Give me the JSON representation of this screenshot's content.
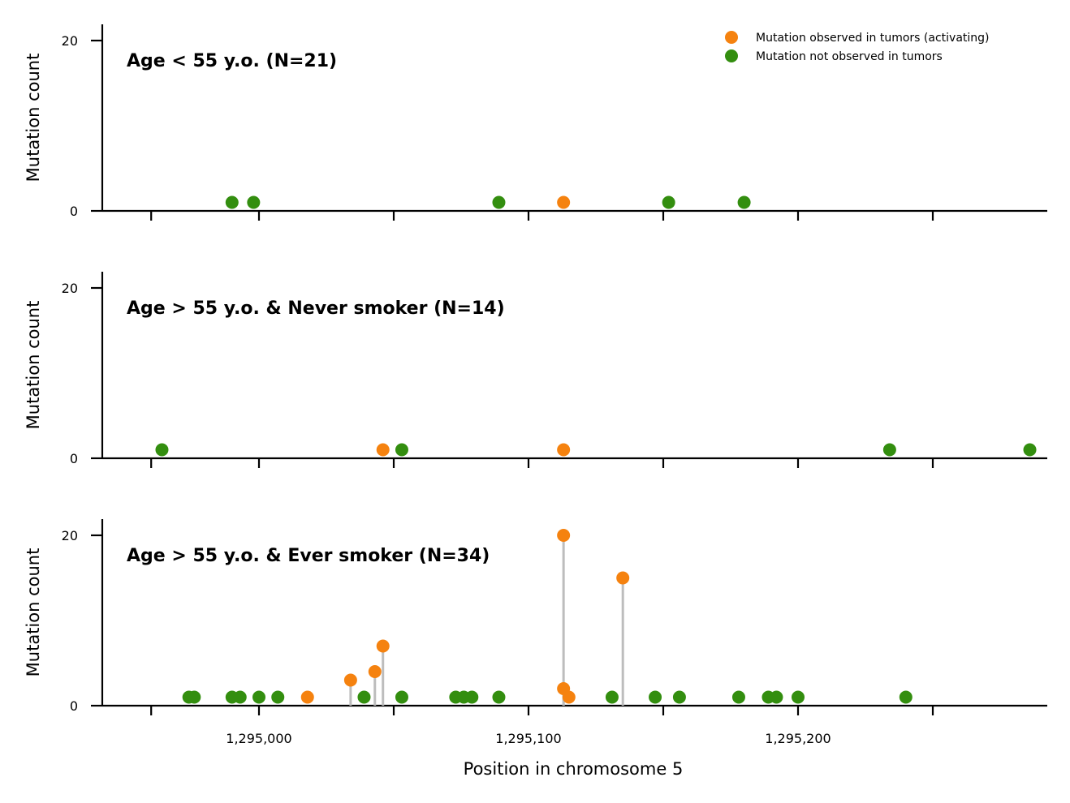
{
  "chart_data": {
    "type": "scatter",
    "xlabel": "Position in chromosome 5",
    "ylabel": "Mutation count",
    "xlim": [
      1294950,
      1295288
    ],
    "ylim": [
      0,
      22
    ],
    "x_ticks": [
      1294960,
      1295000,
      1295050,
      1295100,
      1295150,
      1295200,
      1295250
    ],
    "x_tick_labels": [
      "",
      "1,295,000",
      "",
      "1,295,100",
      "",
      "1,295,200",
      ""
    ],
    "y_ticks": [
      0,
      20
    ],
    "y_tick_labels": [
      "0",
      "20"
    ],
    "colors": {
      "activating": "#f5820f",
      "not_observed": "#338e0f",
      "stem": "#bdbdbd"
    },
    "legend": {
      "placement": "top-right",
      "entries": [
        {
          "key": "activating",
          "label": "Mutation observed in tumors (activating)"
        },
        {
          "key": "not_observed",
          "label": "Mutation not observed in tumors"
        }
      ]
    },
    "panels": [
      {
        "title": "Age < 55 y.o. (N=21)",
        "points": [
          {
            "x": 1294990,
            "y": 1,
            "type": "not_observed"
          },
          {
            "x": 1294998,
            "y": 1,
            "type": "not_observed"
          },
          {
            "x": 1295089,
            "y": 1,
            "type": "not_observed"
          },
          {
            "x": 1295113,
            "y": 1,
            "type": "activating"
          },
          {
            "x": 1295152,
            "y": 1,
            "type": "not_observed"
          },
          {
            "x": 1295180,
            "y": 1,
            "type": "not_observed"
          }
        ]
      },
      {
        "title": "Age > 55 y.o. & Never smoker (N=14)",
        "points": [
          {
            "x": 1294964,
            "y": 1,
            "type": "not_observed"
          },
          {
            "x": 1295046,
            "y": 1,
            "type": "activating"
          },
          {
            "x": 1295053,
            "y": 1,
            "type": "not_observed"
          },
          {
            "x": 1295113,
            "y": 1,
            "type": "activating"
          },
          {
            "x": 1295234,
            "y": 1,
            "type": "not_observed"
          },
          {
            "x": 1295286,
            "y": 1,
            "type": "not_observed"
          }
        ]
      },
      {
        "title": "Age > 55 y.o. & Ever smoker (N=34)",
        "points": [
          {
            "x": 1294974,
            "y": 1,
            "type": "not_observed"
          },
          {
            "x": 1294976,
            "y": 1,
            "type": "not_observed"
          },
          {
            "x": 1294990,
            "y": 1,
            "type": "not_observed"
          },
          {
            "x": 1294993,
            "y": 1,
            "type": "not_observed"
          },
          {
            "x": 1295000,
            "y": 1,
            "type": "not_observed"
          },
          {
            "x": 1295007,
            "y": 1,
            "type": "not_observed"
          },
          {
            "x": 1295018,
            "y": 1,
            "type": "activating"
          },
          {
            "x": 1295034,
            "y": 3,
            "type": "activating"
          },
          {
            "x": 1295039,
            "y": 1,
            "type": "not_observed"
          },
          {
            "x": 1295043,
            "y": 4,
            "type": "activating"
          },
          {
            "x": 1295046,
            "y": 7,
            "type": "activating"
          },
          {
            "x": 1295053,
            "y": 1,
            "type": "not_observed"
          },
          {
            "x": 1295073,
            "y": 1,
            "type": "not_observed"
          },
          {
            "x": 1295076,
            "y": 1,
            "type": "not_observed"
          },
          {
            "x": 1295079,
            "y": 1,
            "type": "not_observed"
          },
          {
            "x": 1295089,
            "y": 1,
            "type": "not_observed"
          },
          {
            "x": 1295113,
            "y": 20,
            "type": "activating"
          },
          {
            "x": 1295113,
            "y": 2,
            "type": "activating"
          },
          {
            "x": 1295115,
            "y": 1,
            "type": "activating"
          },
          {
            "x": 1295131,
            "y": 1,
            "type": "not_observed"
          },
          {
            "x": 1295135,
            "y": 15,
            "type": "activating"
          },
          {
            "x": 1295147,
            "y": 1,
            "type": "not_observed"
          },
          {
            "x": 1295156,
            "y": 1,
            "type": "not_observed"
          },
          {
            "x": 1295178,
            "y": 1,
            "type": "not_observed"
          },
          {
            "x": 1295189,
            "y": 1,
            "type": "not_observed"
          },
          {
            "x": 1295192,
            "y": 1,
            "type": "not_observed"
          },
          {
            "x": 1295200,
            "y": 1,
            "type": "not_observed"
          },
          {
            "x": 1295240,
            "y": 1,
            "type": "not_observed"
          }
        ]
      }
    ]
  }
}
